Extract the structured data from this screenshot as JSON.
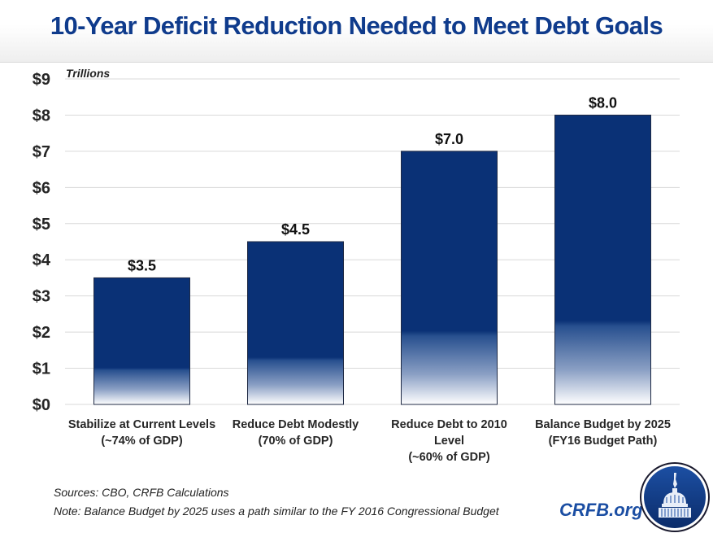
{
  "header": {
    "title": "10-Year Deficit Reduction Needed to Meet Debt Goals"
  },
  "chart_data": {
    "type": "bar",
    "title": "10-Year Deficit Reduction Needed to Meet Debt Goals",
    "unit_label": "Trillions",
    "xlabel": "",
    "ylabel": "",
    "ylim": [
      0,
      9
    ],
    "yticks": [
      0,
      1,
      2,
      3,
      4,
      5,
      6,
      7,
      8,
      9
    ],
    "ytick_labels": [
      "$0",
      "$1",
      "$2",
      "$3",
      "$4",
      "$5",
      "$6",
      "$7",
      "$8",
      "$9"
    ],
    "grid": true,
    "legend": "none",
    "categories": [
      [
        "Stabilize at Current Levels",
        "(~74% of GDP)"
      ],
      [
        "Reduce Debt Modestly",
        "(70% of GDP)"
      ],
      [
        "Reduce Debt to 2010",
        "Level",
        "(~60% of GDP)"
      ],
      [
        "Balance Budget by 2025",
        "(FY16 Budget Path)"
      ]
    ],
    "values": [
      3.5,
      4.5,
      7.0,
      8.0
    ],
    "data_labels": [
      "$3.5",
      "$4.5",
      "$7.0",
      "$8.0"
    ],
    "bar_color": "#0a3176",
    "gradient_fade_to": "#ffffff"
  },
  "footer": {
    "sources": "Sources: CBO, CRFB Calculations",
    "note": "Note: Balance Budget by 2025 uses a path similar to the FY 2016 Congressional Budget",
    "brand": "CRFB.org",
    "logo_icon": "capitol-dome-seal-icon"
  },
  "colors": {
    "title": "#0f3b8c",
    "brand": "#1b4ea3",
    "bar": "#0a3176",
    "gridline": "#d9d9d9"
  }
}
